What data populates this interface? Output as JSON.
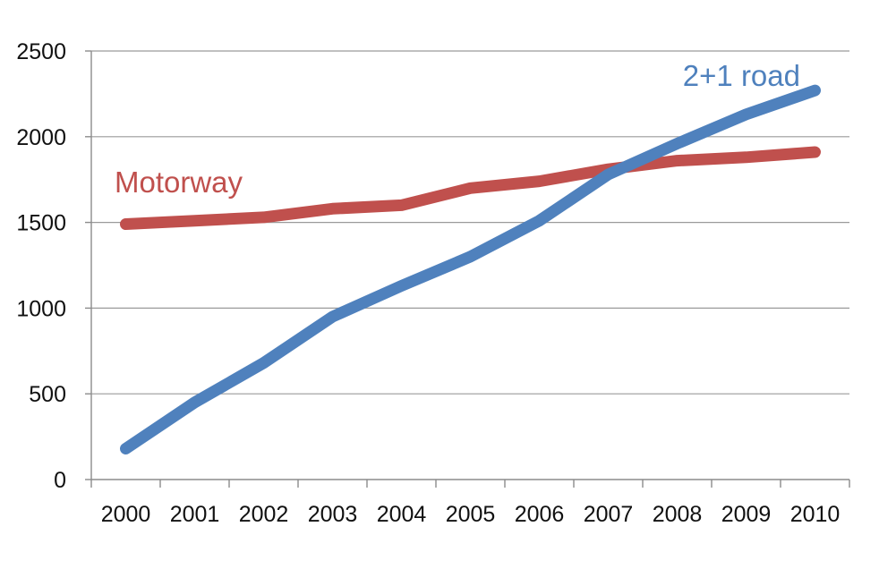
{
  "chart_data": {
    "type": "line",
    "title": "",
    "xlabel": "",
    "ylabel": "",
    "categories": [
      "2000",
      "2001",
      "2002",
      "2003",
      "2004",
      "2005",
      "2006",
      "2007",
      "2008",
      "2009",
      "2010"
    ],
    "ylim": [
      0,
      2500
    ],
    "yticks": [
      0,
      500,
      1000,
      1500,
      2000,
      2500
    ],
    "grid": true,
    "series": [
      {
        "name": "Motorway",
        "color": "#c0504d",
        "label_position": "left, above line",
        "values": [
          1490,
          1510,
          1530,
          1580,
          1600,
          1700,
          1740,
          1810,
          1860,
          1880,
          1910
        ]
      },
      {
        "name": "2+1 road",
        "color": "#4f81bd",
        "label_position": "top-right, above line end",
        "values": [
          180,
          450,
          680,
          950,
          1130,
          1300,
          1510,
          1780,
          1960,
          2130,
          2270
        ]
      }
    ]
  }
}
